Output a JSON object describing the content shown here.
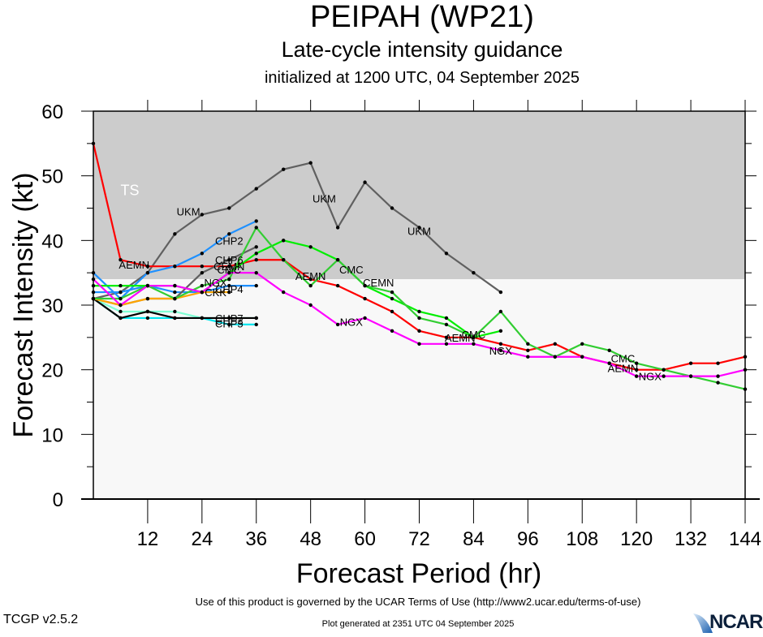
{
  "header": {
    "title": "PEIPAH (WP21)",
    "subtitle": "Late-cycle intensity guidance",
    "init": "initialized at 1200 UTC, 04 September 2025"
  },
  "footer": {
    "terms": "Use of this product is governed by the UCAR Terms of Use (http://www2.ucar.edu/terms-of-use)",
    "generated": "Plot generated at 2351 UTC   04 September 2025",
    "version": "TCGP v2.5.2",
    "logo": "NCAR"
  },
  "chart_data": {
    "type": "line",
    "title": "PEIPAH (WP21)",
    "xlabel": "Forecast Period (hr)",
    "ylabel": "Forecast Intensity (kt)",
    "xlim": [
      0,
      144
    ],
    "ylim": [
      0,
      60
    ],
    "xticks": [
      12,
      24,
      36,
      48,
      60,
      72,
      84,
      96,
      108,
      120,
      132,
      144
    ],
    "yticks": [
      0,
      10,
      20,
      30,
      40,
      50,
      60
    ],
    "bands": [
      {
        "label": "TS",
        "from": 34,
        "to": 60,
        "color": "#cccccc"
      },
      {
        "label": "",
        "from": 0,
        "to": 34,
        "color": "#f8f8f8"
      }
    ],
    "series": [
      {
        "name": "UKM",
        "color": "#606060",
        "x": [
          0,
          6,
          12,
          18,
          24,
          30,
          36,
          42,
          48,
          54,
          60,
          66,
          72,
          78,
          84,
          90
        ],
        "y": [
          31,
          32,
          35,
          41,
          44,
          45,
          48,
          51,
          52,
          42,
          49,
          45,
          42,
          38,
          35,
          32
        ],
        "labels": [
          {
            "x": 21,
            "y": 44.5
          },
          {
            "x": 51,
            "y": 46.5
          },
          {
            "x": 72,
            "y": 41.5
          }
        ]
      },
      {
        "name": "AEMN",
        "color": "#ff0000",
        "x": [
          0,
          6,
          12,
          18,
          24,
          30,
          36,
          42,
          48,
          54,
          60,
          66,
          72,
          78,
          84,
          90,
          96,
          102,
          108,
          114,
          120,
          126,
          132,
          138,
          144
        ],
        "y": [
          55,
          37,
          36,
          36,
          36,
          36,
          37,
          37,
          34,
          33,
          31,
          29,
          26,
          25,
          25,
          24,
          23,
          24,
          22,
          21,
          20,
          20,
          21,
          21,
          22
        ],
        "labels": [
          {
            "x": 9,
            "y": 36.3
          },
          {
            "x": 48,
            "y": 34.5
          },
          {
            "x": 81,
            "y": 25
          },
          {
            "x": 117,
            "y": 20.3
          }
        ]
      },
      {
        "name": "CHP2",
        "color": "#1e90ff",
        "x": [
          0,
          6,
          12,
          18,
          24,
          30,
          36
        ],
        "y": [
          35,
          31,
          35,
          36,
          38,
          41,
          43
        ],
        "labels": [
          {
            "x": 30,
            "y": 40
          }
        ]
      },
      {
        "name": "CHP4",
        "color": "#1e90ff",
        "x": [
          0,
          6,
          12,
          18,
          24,
          30,
          36
        ],
        "y": [
          32,
          32,
          33,
          32,
          32,
          33,
          33
        ],
        "labels": [
          {
            "x": 30,
            "y": 32.5
          }
        ]
      },
      {
        "name": "CHP6",
        "color": "#606060",
        "x": [
          0,
          6,
          12,
          18,
          24,
          30,
          36
        ],
        "y": [
          31,
          30,
          31,
          31,
          35,
          37,
          39
        ],
        "labels": [
          {
            "x": 30,
            "y": 37
          }
        ]
      },
      {
        "name": "CHP7",
        "color": "#7fffd4",
        "x": [
          0,
          6,
          12,
          18,
          24,
          30,
          36
        ],
        "y": [
          31,
          29,
          29,
          29,
          28,
          28,
          28
        ],
        "labels": [
          {
            "x": 30,
            "y": 28
          }
        ]
      },
      {
        "name": "CHP5",
        "color": "#00e5ee",
        "x": [
          0,
          6,
          12,
          18,
          24,
          30,
          36
        ],
        "y": [
          31,
          28,
          28,
          28,
          28,
          27,
          27
        ],
        "labels": [
          {
            "x": 30,
            "y": 27.2
          }
        ]
      },
      {
        "name": "CHP3",
        "color": "#000000",
        "x": [
          0,
          6,
          12,
          18,
          24,
          30,
          36
        ],
        "y": [
          31,
          28,
          29,
          28,
          28,
          28,
          28
        ],
        "labels": [
          {
            "x": 30,
            "y": 27.6
          }
        ]
      },
      {
        "name": "CKK",
        "color": "#ffa500",
        "x": [
          0,
          6,
          12,
          18,
          24,
          30
        ],
        "y": [
          31,
          30,
          31,
          31,
          32,
          32
        ],
        "labels": [
          {
            "x": 27,
            "y": 32
          }
        ]
      },
      {
        "name": "CEMN",
        "color": "#00ee00",
        "x": [
          0,
          6,
          12,
          18,
          24,
          30,
          36,
          42,
          48,
          54,
          60,
          66,
          72,
          78,
          84,
          90
        ],
        "y": [
          33,
          33,
          33,
          33,
          32,
          35,
          38,
          40,
          39,
          37,
          33,
          31,
          29,
          28,
          25,
          26
        ],
        "labels": [
          {
            "x": 30,
            "y": 36
          },
          {
            "x": 63,
            "y": 33.5
          }
        ]
      },
      {
        "name": "CMC",
        "color": "#32cd32",
        "x": [
          0,
          6,
          12,
          18,
          24,
          30,
          36,
          42,
          48,
          54,
          60,
          66,
          72,
          78,
          84,
          90,
          96,
          102,
          108,
          114,
          120,
          126,
          132,
          138,
          144
        ],
        "y": [
          31,
          31,
          33,
          31,
          33,
          34,
          42,
          37,
          33,
          37,
          33,
          32,
          28,
          27,
          25,
          29,
          24,
          22,
          24,
          23,
          21,
          20,
          19,
          18,
          17
        ],
        "labels": [
          {
            "x": 30,
            "y": 35.5
          },
          {
            "x": 57,
            "y": 35.5
          },
          {
            "x": 84,
            "y": 25.5
          },
          {
            "x": 117,
            "y": 21.8
          }
        ]
      },
      {
        "name": "NGX",
        "color": "#ff00ff",
        "x": [
          0,
          6,
          12,
          18,
          24,
          30,
          36,
          42,
          48,
          54,
          60,
          66,
          72,
          78,
          84,
          90,
          96,
          102,
          108,
          114,
          120,
          126,
          132,
          138,
          144
        ],
        "y": [
          34,
          30,
          33,
          33,
          32,
          35,
          35,
          32,
          30,
          27,
          28,
          26,
          24,
          24,
          24,
          23,
          22,
          22,
          22,
          21,
          19,
          19,
          19,
          19,
          20
        ],
        "labels": [
          {
            "x": 27,
            "y": 33.5
          },
          {
            "x": 57,
            "y": 27.4
          },
          {
            "x": 90,
            "y": 23
          },
          {
            "x": 123,
            "y": 19
          }
        ]
      }
    ]
  }
}
